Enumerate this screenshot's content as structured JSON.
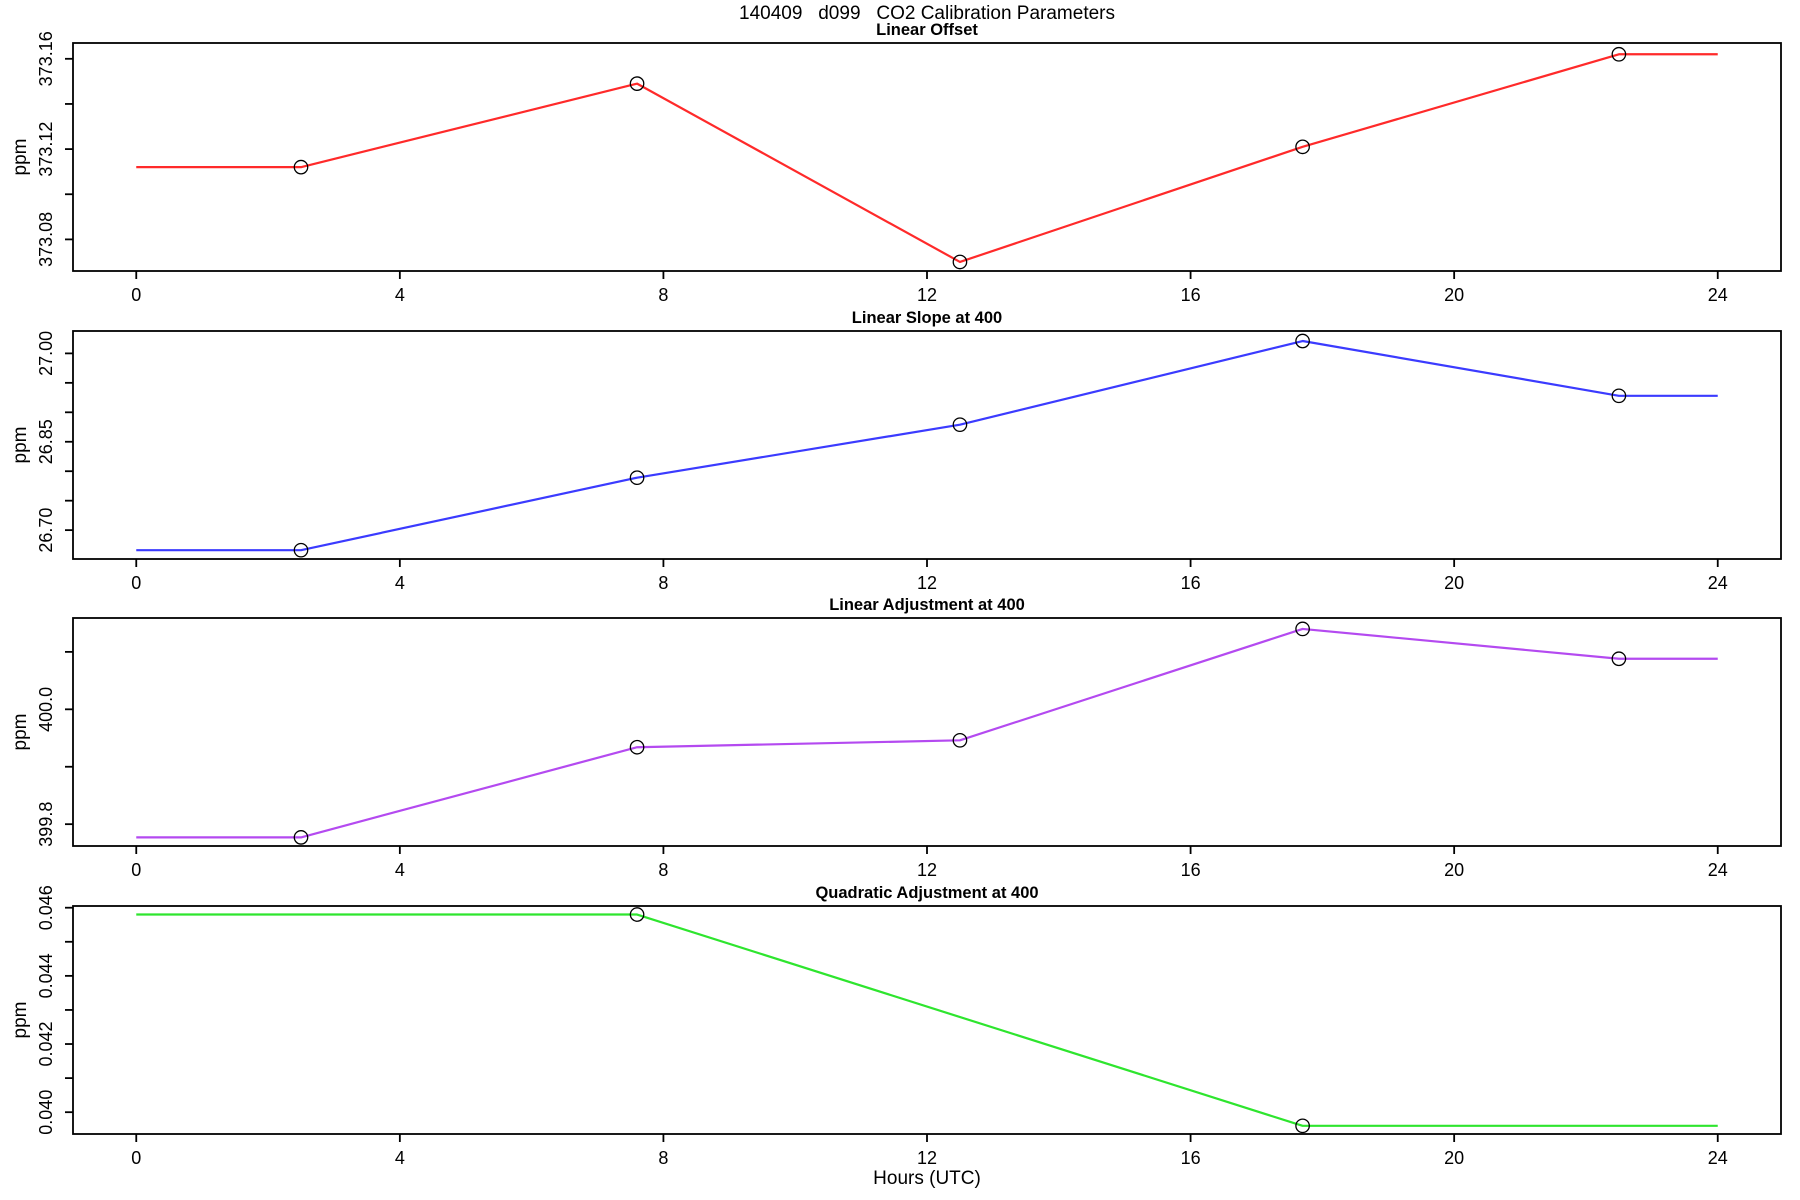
{
  "header": {
    "title": "140409   d099   CO2 Calibration Parameters"
  },
  "x_axis": {
    "label": "Hours (UTC)",
    "ticks": [
      0,
      4,
      8,
      12,
      16,
      20,
      24
    ],
    "tick_labels": [
      "0",
      "4",
      "8",
      "12",
      "16",
      "20",
      "24"
    ],
    "lim": [
      -0.96,
      24.96
    ]
  },
  "chart_data": [
    {
      "type": "line",
      "title": "Linear Offset",
      "ylabel": "ppm",
      "color": "#ff2a2a",
      "x": [
        0,
        2.5,
        7.6,
        12.5,
        17.7,
        22.5,
        24
      ],
      "y": [
        373.112,
        373.112,
        373.149,
        373.07,
        373.121,
        373.162,
        373.162
      ],
      "markers": [
        false,
        true,
        true,
        true,
        true,
        true,
        false
      ],
      "ylim": [
        373.066,
        373.167
      ],
      "yticks": [
        373.08,
        373.1,
        373.12,
        373.14,
        373.16
      ],
      "ytick_labels": [
        "373.08",
        "",
        "373.12",
        "",
        "373.16"
      ],
      "grid": false,
      "legend": "none"
    },
    {
      "type": "line",
      "title": "Linear Slope at 400",
      "ylabel": "ppm",
      "color": "#3b3bff",
      "x": [
        0,
        2.5,
        7.6,
        12.5,
        17.7,
        22.5,
        24
      ],
      "y": [
        26.666,
        26.666,
        26.789,
        26.879,
        27.021,
        26.928,
        26.928
      ],
      "markers": [
        false,
        true,
        true,
        true,
        true,
        true,
        false
      ],
      "ylim": [
        26.651,
        27.038
      ],
      "yticks": [
        26.7,
        26.75,
        26.8,
        26.85,
        26.9,
        26.95,
        27.0
      ],
      "ytick_labels": [
        "26.70",
        "",
        "",
        "26.85",
        "",
        "",
        "27.00"
      ],
      "grid": false,
      "legend": "none"
    },
    {
      "type": "line",
      "title": "Linear Adjustment at 400",
      "ylabel": "ppm",
      "color": "#b44af0",
      "x": [
        0,
        2.5,
        7.6,
        12.5,
        17.7,
        22.5,
        24
      ],
      "y": [
        399.777,
        399.777,
        399.934,
        399.946,
        400.14,
        400.088,
        400.088
      ],
      "markers": [
        false,
        true,
        true,
        true,
        true,
        true,
        false
      ],
      "ylim": [
        399.762,
        400.159
      ],
      "yticks": [
        399.8,
        399.9,
        400.0,
        400.1
      ],
      "ytick_labels": [
        "399.8",
        "",
        "400.0",
        ""
      ],
      "grid": false,
      "legend": "none"
    },
    {
      "type": "line",
      "title": "Quadratic Adjustment at 400",
      "ylabel": "ppm",
      "color": "#2ee52e",
      "x": [
        0,
        7.6,
        17.7,
        24
      ],
      "y": [
        0.0458,
        0.0458,
        0.0396,
        0.0396
      ],
      "markers": [
        false,
        true,
        true,
        false
      ],
      "ylim": [
        0.03936,
        0.04605
      ],
      "yticks": [
        0.04,
        0.041,
        0.042,
        0.043,
        0.044,
        0.045,
        0.046
      ],
      "ytick_labels": [
        "0.040",
        "",
        "0.042",
        "",
        "0.044",
        "",
        "0.046"
      ],
      "grid": false,
      "legend": "none"
    }
  ]
}
